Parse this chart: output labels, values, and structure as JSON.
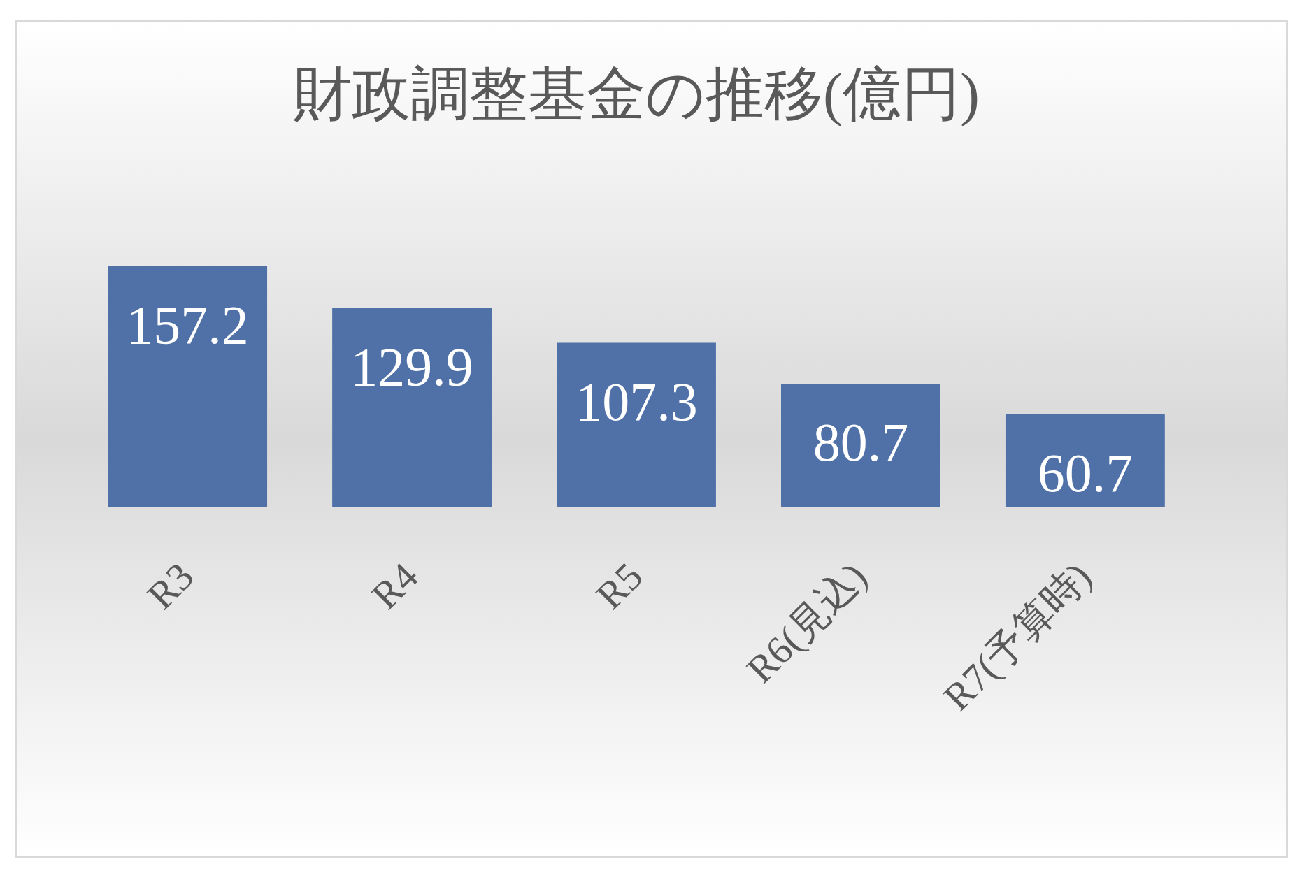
{
  "chart_data": {
    "type": "bar",
    "title": "財政調整基金の推移(億円)",
    "categories": [
      "R3",
      "R4",
      "R5",
      "R6(見込)",
      "R7(予算時)"
    ],
    "values": [
      157.2,
      129.9,
      107.3,
      80.7,
      60.7
    ],
    "color": "#4f71a8",
    "data_labels": true
  }
}
